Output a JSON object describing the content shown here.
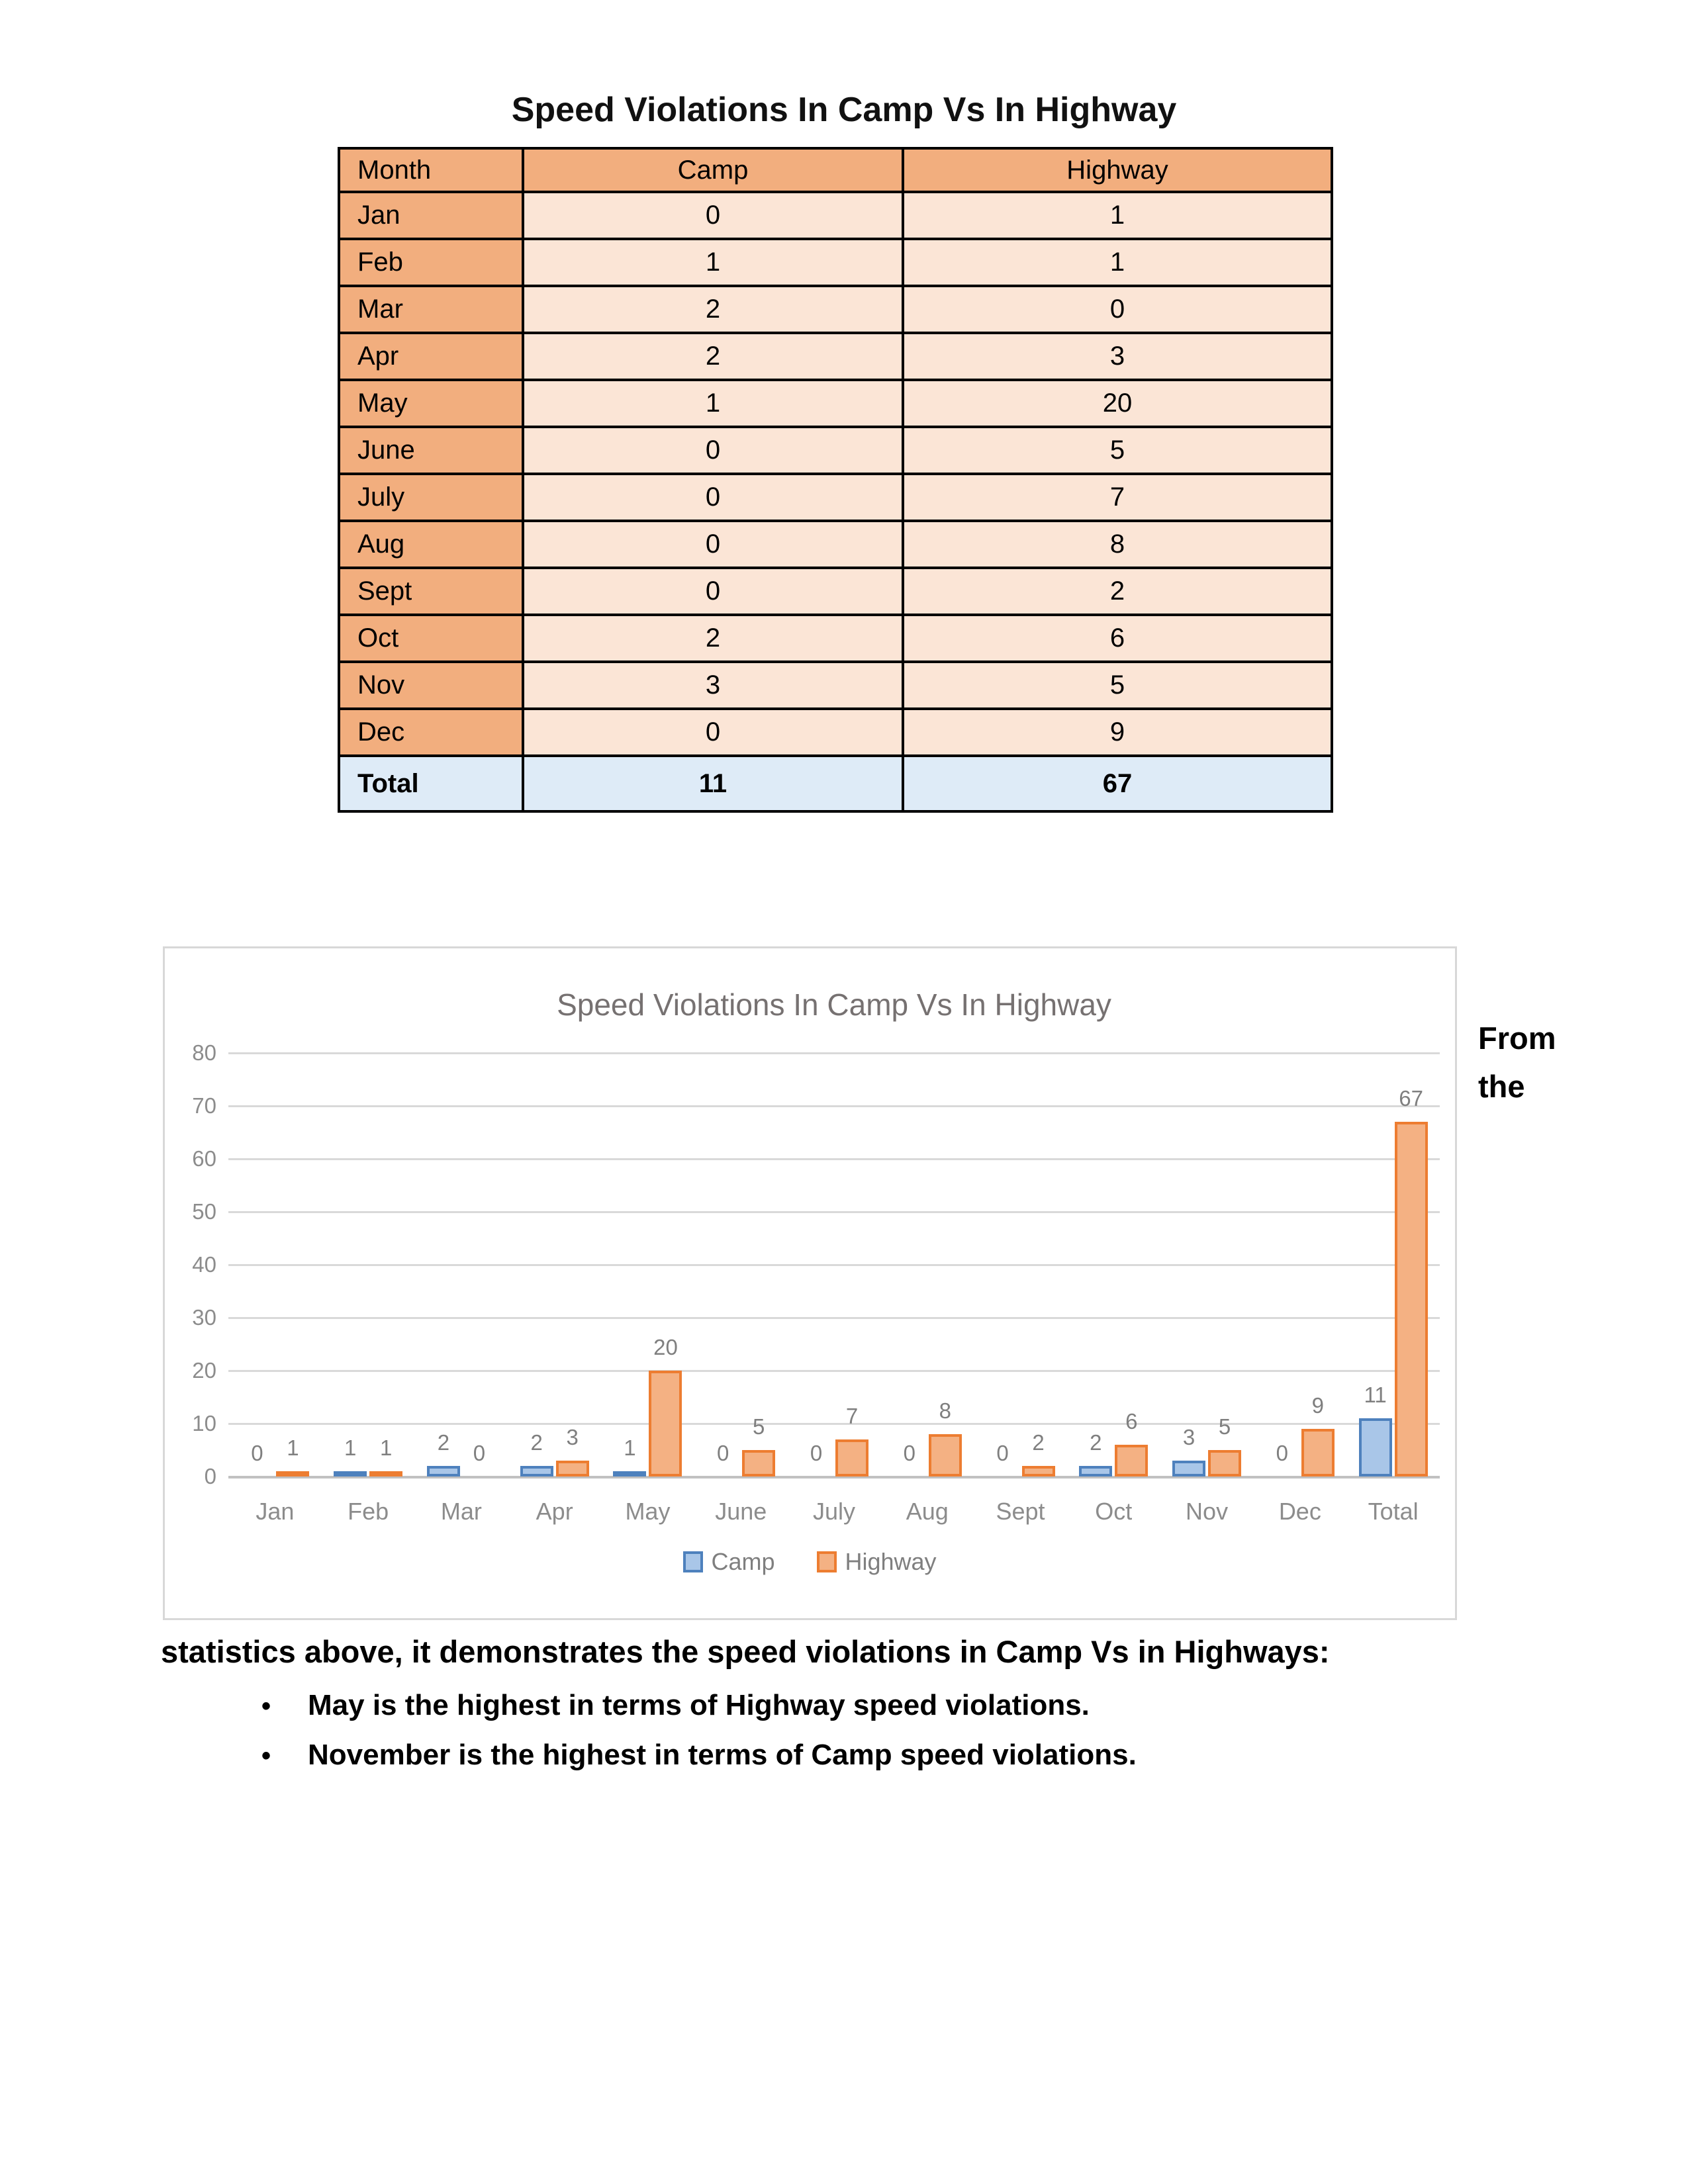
{
  "page": {
    "title": "Speed Violations In Camp Vs In Highway"
  },
  "table": {
    "headers": [
      "Month",
      "Camp",
      "Highway"
    ],
    "rows": [
      [
        "Jan",
        "0",
        "1"
      ],
      [
        "Feb",
        "1",
        "1"
      ],
      [
        "Mar",
        "2",
        "0"
      ],
      [
        "Apr",
        "2",
        "3"
      ],
      [
        "May",
        "1",
        "20"
      ],
      [
        "June",
        "0",
        "5"
      ],
      [
        "July",
        "0",
        "7"
      ],
      [
        "Aug",
        "0",
        "8"
      ],
      [
        "Sept",
        "0",
        "2"
      ],
      [
        "Oct",
        "2",
        "6"
      ],
      [
        "Nov",
        "3",
        "5"
      ],
      [
        "Dec",
        "0",
        "9"
      ]
    ],
    "total_row": [
      "Total",
      "11",
      "67"
    ]
  },
  "chart_data": {
    "type": "bar",
    "title": "Speed Violations In Camp Vs In Highway",
    "categories": [
      "Jan",
      "Feb",
      "Mar",
      "Apr",
      "May",
      "June",
      "July",
      "Aug",
      "Sept",
      "Oct",
      "Nov",
      "Dec",
      "Total"
    ],
    "series": [
      {
        "name": "Camp",
        "values": [
          0,
          1,
          2,
          2,
          1,
          0,
          0,
          0,
          0,
          2,
          3,
          0,
          11
        ]
      },
      {
        "name": "Highway",
        "values": [
          1,
          1,
          0,
          3,
          20,
          5,
          7,
          8,
          2,
          6,
          5,
          9,
          67
        ]
      }
    ],
    "ylim": [
      0,
      80
    ],
    "yticks": [
      0,
      10,
      20,
      30,
      40,
      50,
      60,
      70,
      80
    ],
    "grid": true,
    "legend_position": "bottom",
    "data_labels": true,
    "xlabel": "",
    "ylabel": ""
  },
  "colors": {
    "header_orange": "#f2ae7e",
    "cell_peach": "#fbe5d6",
    "total_blue": "#deebf7",
    "camp_fill": "#a9c6e8",
    "camp_border": "#4e81bd",
    "highway_fill": "#f4b183",
    "highway_border": "#ed7d31",
    "gridline": "#d9d9d9"
  },
  "side_note": {
    "text": "From the"
  },
  "paragraph": {
    "text": "statistics above, it demonstrates the speed violations in Camp Vs in Highways:"
  },
  "bullets": {
    "marker": "•",
    "items": [
      "May is the highest in terms of Highway speed violations.",
      "November is the highest in terms of Camp speed violations."
    ]
  }
}
